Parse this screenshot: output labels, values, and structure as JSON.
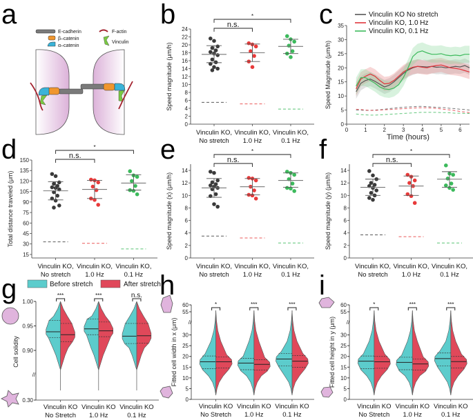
{
  "panel_labels": [
    "a",
    "b",
    "c",
    "d",
    "e",
    "f",
    "g",
    "h",
    "i"
  ],
  "diagram_a": {
    "legend": [
      "E-cadherin",
      "β–catenin",
      "α–catenin",
      "F-actin",
      "Vinculin"
    ],
    "colors": {
      "cadherin": "#7a7a7a",
      "beta": "#f0962e",
      "alpha": "#3ab3d8",
      "actin": "#a3222e",
      "vinculin": "#7ac943",
      "cell": "#e6c4e2"
    }
  },
  "categories_top": [
    "Vinculin KO,|No stretch",
    "Vinculin KO,|1.0 Hz",
    "Vinculin KO,|0.1 Hz"
  ],
  "categories_bottom": [
    "Vinculin KO|No Stretch",
    "Vinculin KO|1.0 Hz",
    "Vinculin KO|0.1 Hz"
  ],
  "group_colors": [
    "#3a3a3a",
    "#e83a3a",
    "#3cba5c"
  ],
  "chart_data": [
    {
      "id": "b",
      "type": "scatter",
      "ylabel": "Speed magnitude (μm/h)",
      "ylim": [
        0,
        24
      ],
      "yticks": [
        0,
        2,
        4,
        6,
        8,
        10,
        12,
        14,
        16,
        18,
        20,
        22,
        24
      ],
      "series": [
        {
          "name": "Vinculin KO, No stretch",
          "points": [
            21.6,
            21.0,
            19.6,
            19.2,
            18.6,
            18.2,
            17.8,
            17.4,
            16.3,
            15.6,
            15.2,
            14.4,
            14.0,
            13.6
          ],
          "mean": 17.6,
          "sd_hi": 19.8,
          "sd_lo": 15.5,
          "control": 5.5
        },
        {
          "name": "Vinculin KO, 1.0 Hz",
          "points": [
            20.4,
            20.1,
            19.6,
            18.4,
            17.2,
            15.8,
            14.4
          ],
          "mean": 18.0,
          "sd_hi": 20.2,
          "sd_lo": 15.8,
          "control": 5.1
        },
        {
          "name": "Vinculin KO, 0.1 Hz",
          "points": [
            22.2,
            21.4,
            20.8,
            19.8,
            18.4,
            17.8,
            16.9
          ],
          "mean": 19.6,
          "sd_hi": 21.4,
          "sd_lo": 17.8,
          "control": 3.8
        }
      ],
      "brackets": [
        {
          "from": 0,
          "to": 2,
          "label": "*"
        },
        {
          "from": 0,
          "to": 1,
          "label": "n.s."
        }
      ]
    },
    {
      "id": "c",
      "type": "line",
      "xlabel": "Time (hours)",
      "ylabel": "Speed Magnitude (μm/h)",
      "xlim": [
        0,
        6.5
      ],
      "ylim": [
        0,
        35
      ],
      "xticks": [
        0,
        1,
        2,
        3,
        4,
        5,
        6
      ],
      "yticks": [
        0,
        5,
        10,
        15,
        20,
        25,
        30,
        35
      ],
      "legend": [
        "Vinculin KO No stretch",
        "Vinculin KO, 1.0 Hz",
        "Vinculin KO, 0.1 Hz"
      ],
      "x": [
        0.5,
        0.75,
        1.0,
        1.25,
        1.5,
        1.75,
        2.0,
        2.25,
        2.5,
        2.75,
        3.0,
        3.25,
        3.5,
        3.75,
        4.0,
        4.25,
        4.5,
        4.75,
        5.0,
        5.25,
        5.5,
        5.75,
        6.0,
        6.25,
        6.5
      ],
      "series": [
        {
          "name": "Vinculin KO No stretch",
          "values": [
            11.5,
            14.5,
            15.5,
            16.0,
            15.2,
            14.2,
            13.2,
            13.8,
            15.0,
            16.5,
            18.0,
            19.2,
            20.0,
            20.5,
            20.4,
            20.3,
            20.5,
            20.2,
            20.3,
            20.0,
            20.2,
            20.5,
            20.3,
            20.8,
            20.0
          ],
          "band": 2.5,
          "control": [
            5.0,
            5.0,
            4.9,
            4.9,
            5.0,
            5.1,
            5.3,
            5.5,
            5.7,
            5.9,
            6.0,
            6.1,
            6.2,
            6.3,
            6.3,
            6.2,
            6.1,
            6.0,
            5.9,
            5.8,
            5.6,
            5.5,
            5.3,
            5.2,
            5.0
          ]
        },
        {
          "name": "Vinculin KO, 1.0 Hz",
          "values": [
            12.5,
            16.0,
            17.0,
            17.8,
            17.0,
            15.5,
            14.3,
            14.5,
            15.5,
            17.0,
            18.5,
            19.5,
            20.2,
            20.5,
            20.2,
            20.0,
            20.5,
            20.8,
            21.0,
            20.5,
            20.0,
            19.8,
            19.5,
            19.0,
            18.5
          ],
          "band": 2.5,
          "control": [
            5.3,
            5.2,
            5.0,
            4.9,
            4.9,
            5.0,
            5.1,
            5.2,
            5.3,
            5.4,
            5.5,
            5.6,
            5.7,
            5.8,
            5.8,
            5.8,
            5.7,
            5.6,
            5.4,
            5.2,
            5.0,
            4.8,
            4.5,
            4.3,
            4.1
          ]
        },
        {
          "name": "Vinculin KO, 0.1 Hz",
          "values": [
            13.5,
            16.5,
            16.5,
            15.5,
            14.5,
            13.2,
            12.5,
            12.3,
            12.8,
            14.0,
            16.5,
            20.0,
            24.0,
            25.5,
            26.0,
            25.3,
            24.8,
            24.8,
            25.0,
            24.5,
            24.3,
            24.5,
            24.3,
            24.8,
            24.8
          ],
          "band": 3.0,
          "control": [
            3.6,
            3.4,
            3.3,
            3.2,
            3.2,
            3.3,
            3.4,
            3.5,
            3.6,
            3.7,
            3.8,
            3.9,
            4.0,
            4.1,
            4.2,
            4.2,
            4.2,
            4.2,
            4.1,
            4.1,
            4.0,
            3.9,
            3.9,
            3.8,
            3.8
          ]
        }
      ]
    },
    {
      "id": "d",
      "type": "scatter",
      "ylabel": "Total distance traveled (μm)",
      "ylim": [
        10,
        150
      ],
      "yticks": [
        15,
        30,
        45,
        60,
        75,
        90,
        105,
        120,
        135,
        150
      ],
      "series": [
        {
          "name": "Vinculin KO, No stretch",
          "points": [
            130,
            127,
            118,
            116,
            113,
            111,
            110,
            108,
            104,
            99,
            95,
            92,
            85,
            82
          ],
          "mean": 106,
          "sd_hi": 119,
          "sd_lo": 93,
          "control": 33
        },
        {
          "name": "Vinculin KO, 1.0 Hz",
          "points": [
            122,
            121,
            118,
            112,
            107,
            95,
            93,
            86
          ],
          "mean": 108,
          "sd_hi": 121,
          "sd_lo": 95,
          "control": 31
        },
        {
          "name": "Vinculin KO, 0.1 Hz",
          "points": [
            134,
            128,
            126,
            120,
            113,
            107,
            106,
            101
          ],
          "mean": 117,
          "sd_hi": 129,
          "sd_lo": 107,
          "control": 23
        }
      ],
      "brackets": [
        {
          "from": 0,
          "to": 2,
          "label": "*"
        },
        {
          "from": 0,
          "to": 1,
          "label": "n.s."
        }
      ]
    },
    {
      "id": "e",
      "type": "scatter",
      "ylabel": "Speed magnitude (x) (μm/h)",
      "ylim": [
        0,
        15
      ],
      "yticks": [
        0,
        2,
        4,
        6,
        8,
        10,
        12,
        14
      ],
      "series": [
        {
          "name": "Vinculin KO, No stretch",
          "points": [
            13.8,
            13.6,
            12.4,
            12.1,
            11.8,
            11.6,
            11.4,
            11.2,
            11.0,
            10.2,
            9.9,
            8.6,
            8.2
          ],
          "mean": 11.2,
          "sd_hi": 12.7,
          "sd_lo": 9.7,
          "control": 3.5
        },
        {
          "name": "Vinculin KO, 1.0 Hz",
          "points": [
            12.8,
            12.7,
            12.4,
            11.4,
            10.8,
            10.1,
            10.0,
            9.5
          ],
          "mean": 11.4,
          "sd_hi": 12.7,
          "sd_lo": 10.1,
          "control": 3.2
        },
        {
          "name": "Vinculin KO, 0.1 Hz",
          "points": [
            13.8,
            13.6,
            13.3,
            12.6,
            11.9,
            11.2,
            11.1,
            10.7
          ],
          "mean": 12.4,
          "sd_hi": 13.6,
          "sd_lo": 11.3,
          "control": 2.4
        }
      ],
      "brackets": [
        {
          "from": 0,
          "to": 2,
          "label": "*"
        },
        {
          "from": 0,
          "to": 1,
          "label": "n.s."
        }
      ]
    },
    {
      "id": "f",
      "type": "scatter",
      "ylabel": "Speed magnitude (y) (μm/h)",
      "ylim": [
        0,
        15
      ],
      "yticks": [
        0,
        2,
        4,
        6,
        8,
        10,
        12,
        14
      ],
      "series": [
        {
          "name": "Vinculin KO, No stretch",
          "points": [
            13.9,
            13.2,
            12.6,
            12.0,
            11.7,
            11.5,
            11.2,
            10.8,
            10.4,
            10.0,
            9.6,
            9.3
          ],
          "mean": 11.3,
          "sd_hi": 12.6,
          "sd_lo": 10.0,
          "control": 3.7
        },
        {
          "name": "Vinculin KO, 1.0 Hz",
          "points": [
            13.3,
            13.0,
            12.4,
            12.0,
            11.5,
            10.2,
            9.9,
            8.8
          ],
          "mean": 11.5,
          "sd_hi": 13.1,
          "sd_lo": 10.0,
          "control": 3.4
        },
        {
          "name": "Vinculin KO, 0.1 Hz",
          "points": [
            14.8,
            13.5,
            13.3,
            12.7,
            11.9,
            11.6,
            11.2,
            10.9
          ],
          "mean": 12.6,
          "sd_hi": 13.8,
          "sd_lo": 11.3,
          "control": 2.4
        }
      ],
      "brackets": [
        {
          "from": 0,
          "to": 2,
          "label": "*"
        },
        {
          "from": 0,
          "to": 1,
          "label": "n.s."
        }
      ]
    },
    {
      "id": "g",
      "type": "violin",
      "ylabel": "Cell solidity",
      "yticks_upper": [
        1.0,
        0.95,
        0.9
      ],
      "ylim_upper": [
        0.86,
        1.0
      ],
      "ylim_lower_label": "0.30",
      "legend": [
        "Before stretch",
        "After stretch"
      ],
      "colors": [
        "#5ccccc",
        "#e0485a"
      ],
      "groups": [
        {
          "before": {
            "median": 0.938,
            "q1": 0.926,
            "q3": 0.961
          },
          "after": {
            "median": 0.932,
            "q1": 0.918,
            "q3": 0.955
          },
          "sig": "***"
        },
        {
          "before": {
            "median": 0.944,
            "q1": 0.932,
            "q3": 0.964
          },
          "after": {
            "median": 0.94,
            "q1": 0.928,
            "q3": 0.958
          },
          "sig": "***"
        },
        {
          "before": {
            "median": 0.929,
            "q1": 0.914,
            "q3": 0.955
          },
          "after": {
            "median": 0.93,
            "q1": 0.915,
            "q3": 0.955
          },
          "sig": "n.s."
        }
      ]
    },
    {
      "id": "h",
      "type": "violin",
      "ylabel": "Fitted cell width in x (μm)",
      "yticks": [
        0,
        5,
        10,
        15,
        20,
        25,
        30,
        55,
        60
      ],
      "ylim": [
        0,
        60
      ],
      "axis_break": [
        35,
        52
      ],
      "colors": [
        "#5ccccc",
        "#e0485a"
      ],
      "groups": [
        {
          "before": {
            "median": 17.5,
            "q1": 14.3,
            "q3": 20.2
          },
          "after": {
            "median": 17.5,
            "q1": 14.6,
            "q3": 19.8
          },
          "sig": "*"
        },
        {
          "before": {
            "median": 16.9,
            "q1": 13.8,
            "q3": 19.1
          },
          "after": {
            "median": 16.3,
            "q1": 13.6,
            "q3": 18.5
          },
          "sig": "***"
        },
        {
          "before": {
            "median": 18.8,
            "q1": 15.6,
            "q3": 21.3
          },
          "after": {
            "median": 17.8,
            "q1": 14.9,
            "q3": 20.4
          },
          "sig": "***"
        }
      ]
    },
    {
      "id": "i",
      "type": "violin",
      "ylabel": "Fitted cell height in y (μm)",
      "yticks": [
        0,
        5,
        10,
        15,
        20,
        25,
        30,
        55,
        60
      ],
      "ylim": [
        0,
        60
      ],
      "axis_break": [
        35,
        52
      ],
      "colors": [
        "#5ccccc",
        "#e0485a"
      ],
      "groups": [
        {
          "before": {
            "median": 17.8,
            "q1": 14.3,
            "q3": 20.2
          },
          "after": {
            "median": 17.5,
            "q1": 14.5,
            "q3": 20.0
          },
          "sig": "*"
        },
        {
          "before": {
            "median": 17.2,
            "q1": 13.8,
            "q3": 19.6
          },
          "after": {
            "median": 16.5,
            "q1": 13.6,
            "q3": 18.8
          },
          "sig": "***"
        },
        {
          "before": {
            "median": 19.0,
            "q1": 15.6,
            "q3": 21.6
          },
          "after": {
            "median": 17.6,
            "q1": 14.6,
            "q3": 20.0
          },
          "sig": "***"
        }
      ]
    }
  ]
}
